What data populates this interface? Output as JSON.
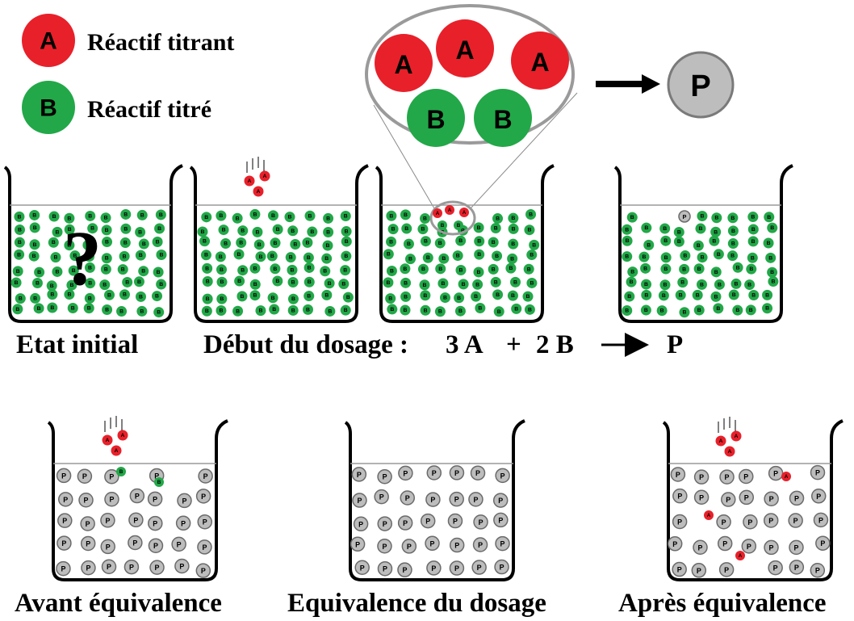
{
  "legend": {
    "reactant_a": {
      "letter": "A",
      "label": "Réactif titrant",
      "color": "#e8202a"
    },
    "reactant_b": {
      "letter": "B",
      "label": "Réactif titré",
      "color": "#22a848"
    }
  },
  "reaction": {
    "product_letter": "P",
    "product_color": "#bdbdbd",
    "label_prefix": "Début du dosage :",
    "coef_a": "3 A",
    "plus": "+",
    "coef_b": "2 B",
    "product": "P"
  },
  "stages": [
    {
      "id": "initial",
      "caption": "Etat initial",
      "mark": "?"
    },
    {
      "id": "start",
      "caption": ""
    },
    {
      "id": "start-zoom",
      "caption": ""
    },
    {
      "id": "after-reaction",
      "caption": ""
    },
    {
      "id": "before-eq",
      "caption": "Avant équivalence"
    },
    {
      "id": "equivalence",
      "caption": "Equivalence du dosage"
    },
    {
      "id": "after-eq",
      "caption": "Après équivalence"
    }
  ]
}
